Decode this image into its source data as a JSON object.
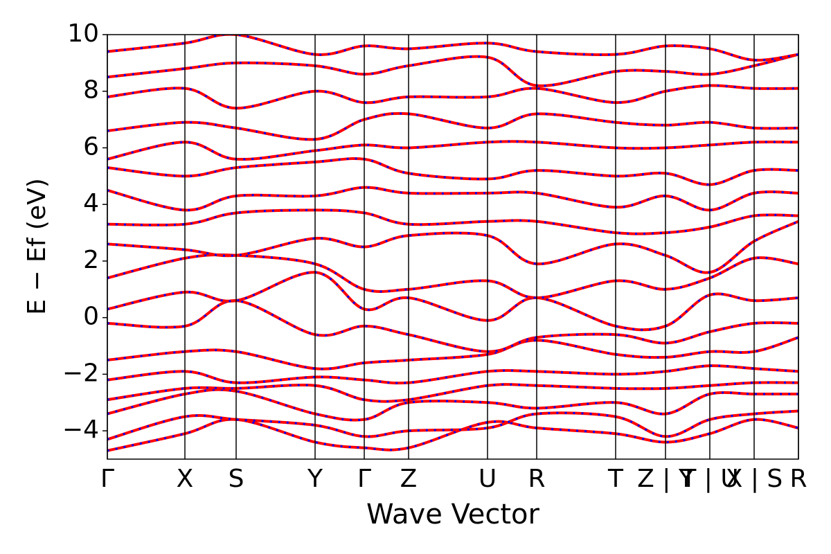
{
  "chart_data": {
    "type": "line",
    "xlabel": "Wave Vector",
    "ylabel": "E − Ef (eV)",
    "x": [
      0,
      1.12,
      1.86,
      3.0,
      3.71,
      4.35,
      5.49,
      6.2,
      7.34,
      8.06,
      8.7,
      9.34,
      9.98
    ],
    "xlim": [
      0,
      9.98
    ],
    "xticks": [
      {
        "value": 0,
        "label": "Γ"
      },
      {
        "value": 1.12,
        "label": "X"
      },
      {
        "value": 1.86,
        "label": "S"
      },
      {
        "value": 3.0,
        "label": "Y"
      },
      {
        "value": 3.71,
        "label": "Γ"
      },
      {
        "value": 4.35,
        "label": "Z"
      },
      {
        "value": 5.49,
        "label": "U"
      },
      {
        "value": 6.2,
        "label": "R"
      },
      {
        "value": 7.34,
        "label": "T"
      },
      {
        "value": 8.06,
        "label": "Z | Y"
      },
      {
        "value": 8.7,
        "label": "T | U"
      },
      {
        "value": 9.34,
        "label": "X | S"
      },
      {
        "value": 9.98,
        "label": "R"
      }
    ],
    "ylim": [
      -5,
      10
    ],
    "yticks": [
      {
        "value": -4,
        "label": "−4"
      },
      {
        "value": -2,
        "label": "−2"
      },
      0,
      2,
      4,
      6,
      8,
      10
    ],
    "dash_color": "#0000ff",
    "series": [
      {
        "color": "#ff0000",
        "values": [
          -4.7,
          -4.1,
          -3.6,
          -4.4,
          -4.6,
          -4.6,
          -3.7,
          -3.9,
          -4.1,
          -4.4,
          -4.1,
          -3.6,
          -3.9
        ]
      },
      {
        "color": "#ff0000",
        "values": [
          -4.3,
          -3.5,
          -3.6,
          -3.8,
          -4.2,
          -4.0,
          -3.9,
          -3.4,
          -3.5,
          -4.2,
          -3.6,
          -3.4,
          -3.3
        ]
      },
      {
        "color": "#ff0000",
        "values": [
          -3.4,
          -2.7,
          -2.6,
          -3.4,
          -3.6,
          -3.0,
          -3.0,
          -3.2,
          -3.0,
          -3.4,
          -2.7,
          -2.7,
          -2.7
        ]
      },
      {
        "color": "#ff0000",
        "values": [
          -2.9,
          -2.5,
          -2.5,
          -2.4,
          -2.9,
          -2.9,
          -2.4,
          -2.4,
          -2.5,
          -2.5,
          -2.4,
          -2.3,
          -2.3
        ]
      },
      {
        "color": "#ff0000",
        "values": [
          -2.2,
          -1.9,
          -2.3,
          -2.1,
          -2.2,
          -2.3,
          -1.9,
          -1.9,
          -2.0,
          -1.9,
          -1.7,
          -1.8,
          -1.9
        ]
      },
      {
        "color": "#ff0000",
        "values": [
          -1.5,
          -1.2,
          -1.2,
          -1.8,
          -1.6,
          -1.5,
          -1.3,
          -0.8,
          -1.3,
          -1.4,
          -1.2,
          -1.2,
          -0.7
        ]
      },
      {
        "color": "#ff0000",
        "values": [
          -0.2,
          -0.3,
          0.6,
          -0.6,
          -0.3,
          -0.6,
          -1.2,
          -0.7,
          -0.6,
          -0.9,
          -0.5,
          -0.2,
          -0.2
        ]
      },
      {
        "color": "#ff0000",
        "values": [
          0.3,
          0.9,
          0.6,
          1.6,
          0.3,
          0.7,
          -0.1,
          0.7,
          -0.3,
          -0.3,
          0.8,
          0.6,
          0.7
        ]
      },
      {
        "color": "#ff0000",
        "values": [
          1.4,
          2.1,
          2.2,
          1.9,
          1.0,
          1.0,
          1.3,
          0.7,
          1.3,
          1.0,
          1.4,
          2.1,
          1.9
        ]
      },
      {
        "color": "#ff0000",
        "values": [
          2.6,
          2.4,
          2.2,
          2.8,
          2.5,
          2.9,
          2.9,
          1.9,
          2.6,
          2.2,
          1.6,
          2.7,
          3.4
        ]
      },
      {
        "color": "#ff0000",
        "values": [
          3.3,
          3.3,
          3.7,
          3.8,
          3.7,
          3.3,
          3.4,
          3.4,
          3.0,
          3.0,
          3.2,
          3.6,
          3.6
        ]
      },
      {
        "color": "#ff0000",
        "values": [
          4.5,
          3.8,
          4.3,
          4.3,
          4.6,
          4.4,
          4.4,
          4.4,
          3.9,
          4.3,
          3.8,
          4.4,
          4.4
        ]
      },
      {
        "color": "#ff0000",
        "values": [
          5.3,
          5.0,
          5.3,
          5.5,
          5.6,
          5.1,
          4.9,
          5.2,
          5.0,
          5.1,
          4.7,
          5.2,
          5.2
        ]
      },
      {
        "color": "#ff0000",
        "values": [
          5.6,
          6.2,
          5.6,
          5.9,
          6.1,
          6.0,
          6.2,
          6.2,
          6.0,
          6.0,
          6.1,
          6.2,
          6.2
        ]
      },
      {
        "color": "#ff0000",
        "values": [
          6.6,
          6.9,
          6.7,
          6.3,
          7.0,
          7.2,
          6.7,
          7.2,
          6.9,
          6.8,
          6.9,
          6.7,
          6.7
        ]
      },
      {
        "color": "#ff0000",
        "values": [
          7.8,
          8.1,
          7.4,
          8.0,
          7.6,
          7.8,
          7.8,
          8.1,
          7.6,
          8.0,
          8.2,
          8.1,
          8.1
        ]
      },
      {
        "color": "#ff0000",
        "values": [
          8.5,
          8.8,
          9.0,
          8.9,
          8.6,
          8.9,
          9.2,
          8.2,
          8.7,
          8.7,
          8.6,
          8.9,
          9.3
        ]
      },
      {
        "color": "#ff0000",
        "values": [
          9.4,
          9.7,
          10.0,
          9.3,
          9.6,
          9.5,
          9.7,
          9.4,
          9.3,
          9.6,
          9.5,
          9.1,
          9.3
        ]
      }
    ]
  }
}
